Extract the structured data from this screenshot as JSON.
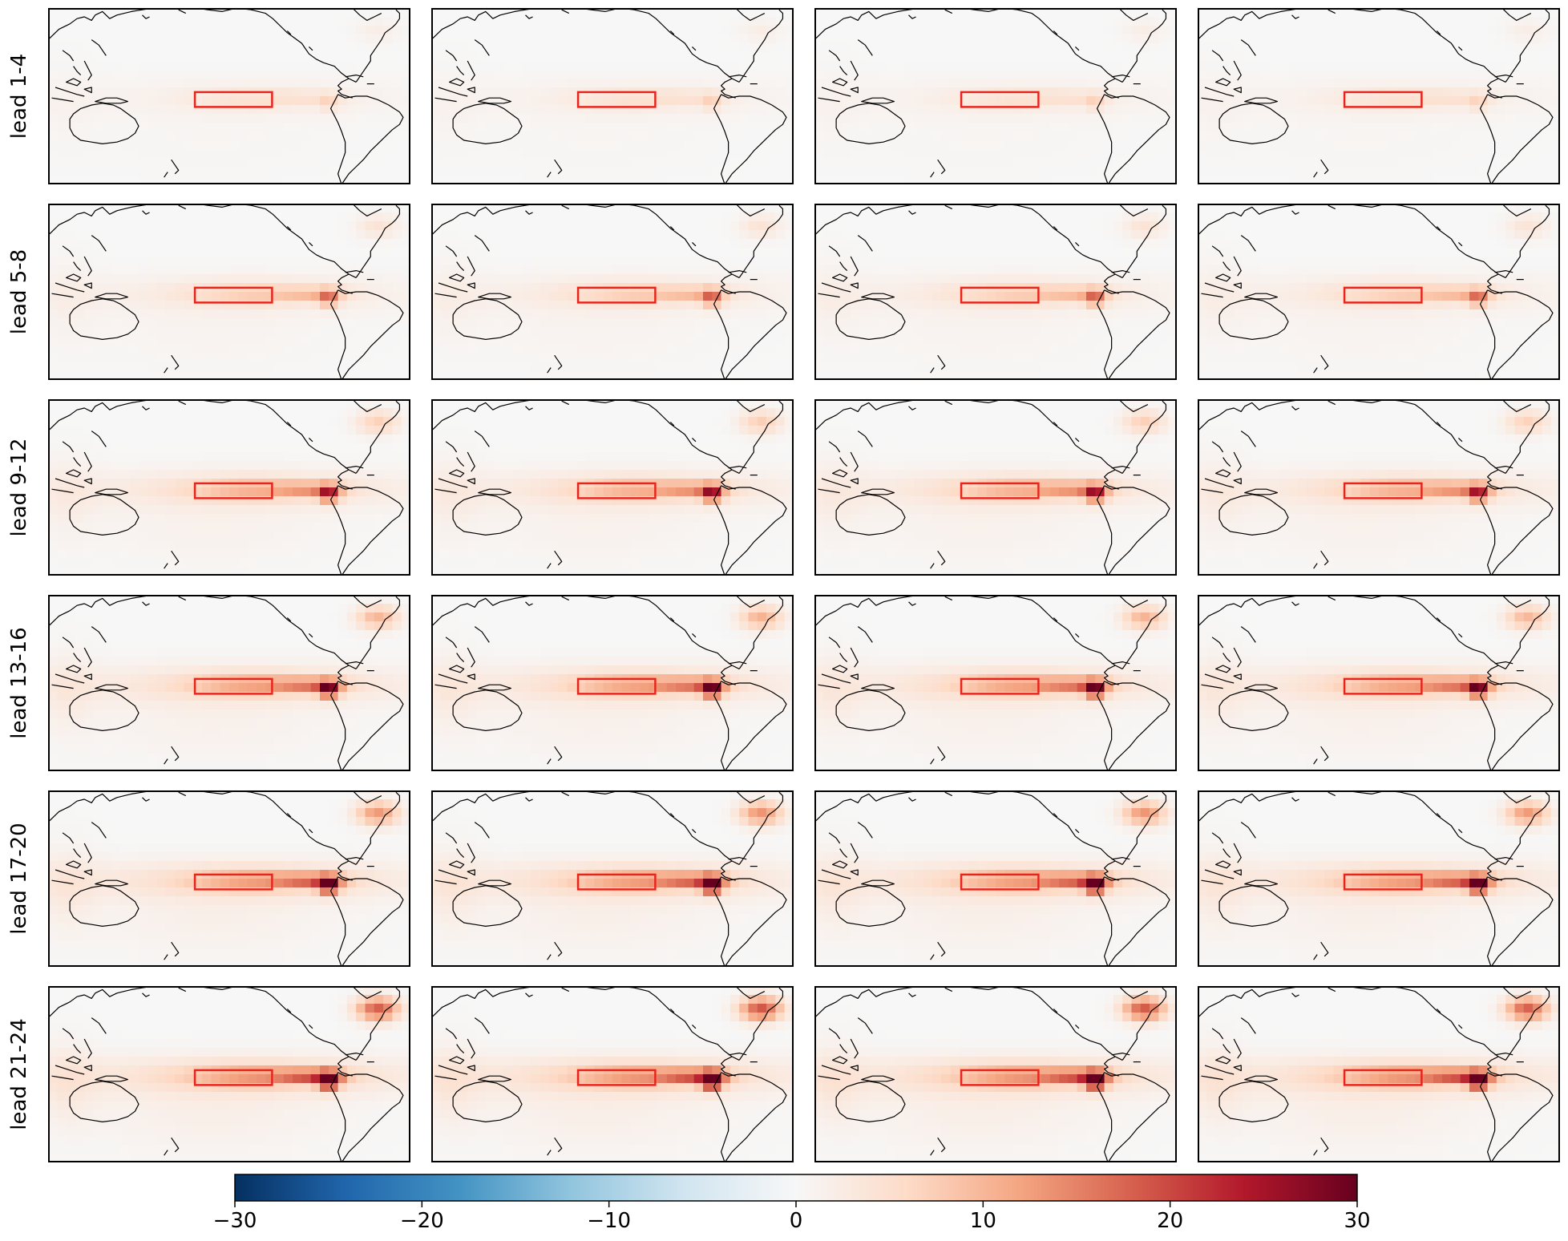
{
  "row_labels": [
    "lead 1-4",
    "lead 5-8",
    "lead 9-12",
    "lead 13-16",
    "lead 17-20",
    "lead 21-24"
  ],
  "column_count": 4,
  "colorbar": {
    "min": -30,
    "max": 30,
    "ticks": [
      -30,
      -20,
      -10,
      0,
      10,
      20,
      30
    ],
    "tick_labels": [
      "−30",
      "−20",
      "−10",
      "0",
      "10",
      "20",
      "30"
    ],
    "colormap": "RdBu_r"
  },
  "region_box_color": "#e8251c",
  "coastline_color": "#000000",
  "anomaly_levels": [
    {
      "peru": 4,
      "nino": 3,
      "atlantic": 2,
      "band": 1.5
    },
    {
      "peru": 12,
      "nino": 5,
      "atlantic": 4,
      "band": 2.5
    },
    {
      "peru": 18,
      "nino": 7,
      "atlantic": 7,
      "band": 3.5
    },
    {
      "peru": 22,
      "nino": 8,
      "atlantic": 10,
      "band": 4
    },
    {
      "peru": 25,
      "nino": 8,
      "atlantic": 13,
      "band": 4.5
    },
    {
      "peru": 28,
      "nino": 8,
      "atlantic": 18,
      "band": 5
    }
  ]
}
